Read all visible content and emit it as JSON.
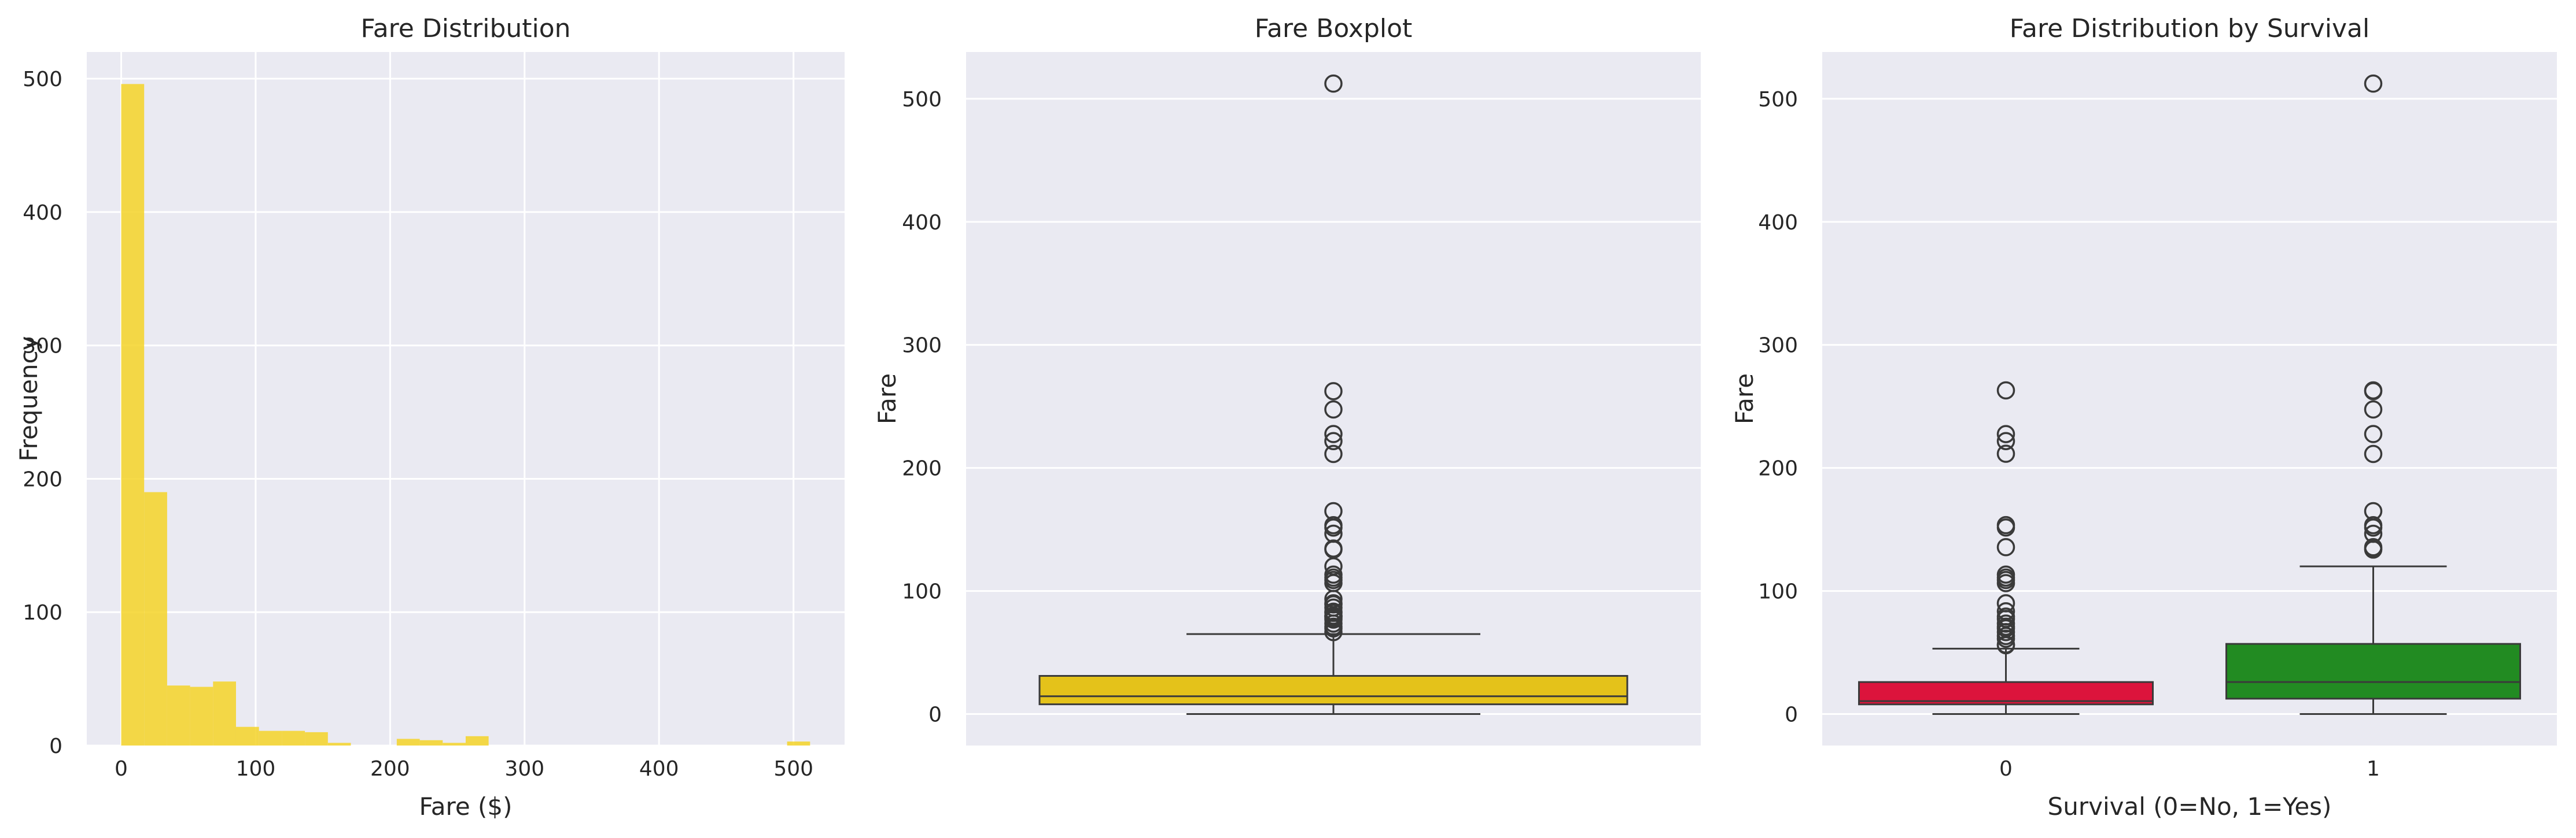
{
  "figure": {
    "background": "#ffffff",
    "axes_facecolor": "#eaeaf2",
    "grid_color": "#ffffff"
  },
  "chart_data": [
    {
      "type": "histogram",
      "title": "Fare Distribution",
      "xlabel": "Fare ($)",
      "ylabel": "Frequency",
      "color": "#f5d328",
      "bin_width": 17.08,
      "bins": [
        {
          "x0": 0.0,
          "x1": 17.08,
          "count": 496
        },
        {
          "x0": 17.08,
          "x1": 34.16,
          "count": 190
        },
        {
          "x0": 34.16,
          "x1": 51.24,
          "count": 45
        },
        {
          "x0": 51.24,
          "x1": 68.32,
          "count": 44
        },
        {
          "x0": 68.32,
          "x1": 85.39,
          "count": 48
        },
        {
          "x0": 85.39,
          "x1": 102.47,
          "count": 14
        },
        {
          "x0": 102.47,
          "x1": 119.55,
          "count": 11
        },
        {
          "x0": 119.55,
          "x1": 136.63,
          "count": 11
        },
        {
          "x0": 136.63,
          "x1": 153.71,
          "count": 10
        },
        {
          "x0": 153.71,
          "x1": 170.79,
          "count": 2
        },
        {
          "x0": 170.79,
          "x1": 187.87,
          "count": 0
        },
        {
          "x0": 187.87,
          "x1": 204.95,
          "count": 0
        },
        {
          "x0": 204.95,
          "x1": 222.03,
          "count": 5
        },
        {
          "x0": 222.03,
          "x1": 239.11,
          "count": 4
        },
        {
          "x0": 239.11,
          "x1": 256.19,
          "count": 2
        },
        {
          "x0": 256.19,
          "x1": 273.26,
          "count": 7
        },
        {
          "x0": 273.26,
          "x1": 290.34,
          "count": 0
        },
        {
          "x0": 495.25,
          "x1": 512.33,
          "count": 3
        }
      ],
      "xlim": [
        -25.6,
        538.0
      ],
      "ylim": [
        0,
        520
      ],
      "xticks": [
        0,
        100,
        200,
        300,
        400,
        500
      ],
      "yticks": [
        0,
        100,
        200,
        300,
        400,
        500
      ],
      "grid": true
    },
    {
      "type": "boxplot",
      "title": "Fare Boxplot",
      "xlabel": "",
      "ylabel": "Fare",
      "color": "#e4c21a",
      "ylim": [
        -25.6,
        538.0
      ],
      "yticks": [
        0,
        100,
        200,
        300,
        400,
        500
      ],
      "grid": true,
      "boxes": [
        {
          "min": 0,
          "q1": 7.91,
          "median": 14.45,
          "q3": 31.0,
          "whisker_high": 65.0,
          "outliers": [
            66.6,
            69.55,
            71.0,
            73.5,
            76.73,
            77.96,
            79.2,
            79.65,
            80.0,
            82.17,
            83.16,
            86.5,
            89.1,
            90.0,
            93.5,
            106.43,
            108.9,
            110.88,
            113.28,
            120.0,
            133.65,
            134.5,
            146.52,
            151.55,
            153.46,
            164.87,
            211.34,
            221.78,
            227.53,
            247.52,
            262.38,
            512.33
          ]
        }
      ]
    },
    {
      "type": "boxplot",
      "title": "Fare Distribution by Survival",
      "xlabel": "Survival (0=No, 1=Yes)",
      "ylabel": "Fare",
      "categories": [
        "0",
        "1"
      ],
      "ylim": [
        -25.6,
        538.0
      ],
      "yticks": [
        0,
        100,
        200,
        300,
        400,
        500
      ],
      "grid": true,
      "boxes": [
        {
          "category": "0",
          "color": "#dc143c",
          "min": 0,
          "q1": 7.85,
          "median": 10.5,
          "q3": 26.0,
          "whisker_high": 53.1,
          "outliers": [
            55.9,
            56.5,
            61.2,
            63.4,
            66.6,
            69.55,
            71.0,
            73.5,
            77.3,
            79.2,
            83.5,
            90.0,
            106.4,
            108.9,
            110.9,
            113.3,
            135.6,
            151.6,
            153.5,
            211.5,
            221.8,
            227.5,
            263.0
          ]
        },
        {
          "category": "1",
          "color": "#228b22",
          "min": 0,
          "q1": 12.48,
          "median": 26.0,
          "q3": 57.0,
          "whisker_high": 120.0,
          "outliers": [
            133.65,
            134.5,
            135.6,
            146.5,
            151.55,
            153.46,
            164.87,
            211.34,
            227.53,
            247.52,
            262.38,
            263.0,
            512.33
          ]
        }
      ]
    }
  ]
}
